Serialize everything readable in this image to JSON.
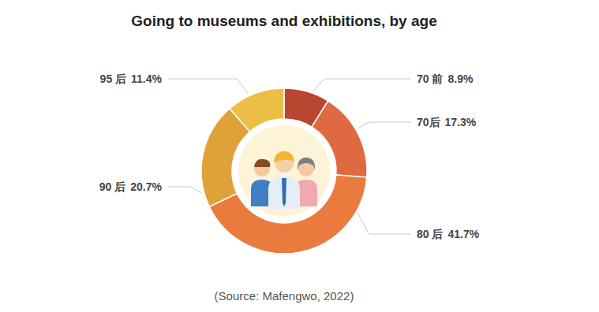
{
  "chart_data": {
    "type": "pie",
    "title": "Going to museums and exhibitions, by age",
    "categories": [
      "70 前",
      "70后",
      "80 后",
      "90 后",
      "95 后"
    ],
    "values": [
      8.9,
      17.3,
      41.7,
      20.7,
      11.4
    ],
    "value_labels": [
      "8.9%",
      "17.3%",
      "41.7%",
      "20.7%",
      "11.4%"
    ],
    "colors": [
      "#b9472f",
      "#df6a42",
      "#ea7b3f",
      "#dfa23b",
      "#ebbf45"
    ],
    "data_labels": true,
    "annotations": [
      "(Source: Mafengwo, 2022)"
    ]
  }
}
